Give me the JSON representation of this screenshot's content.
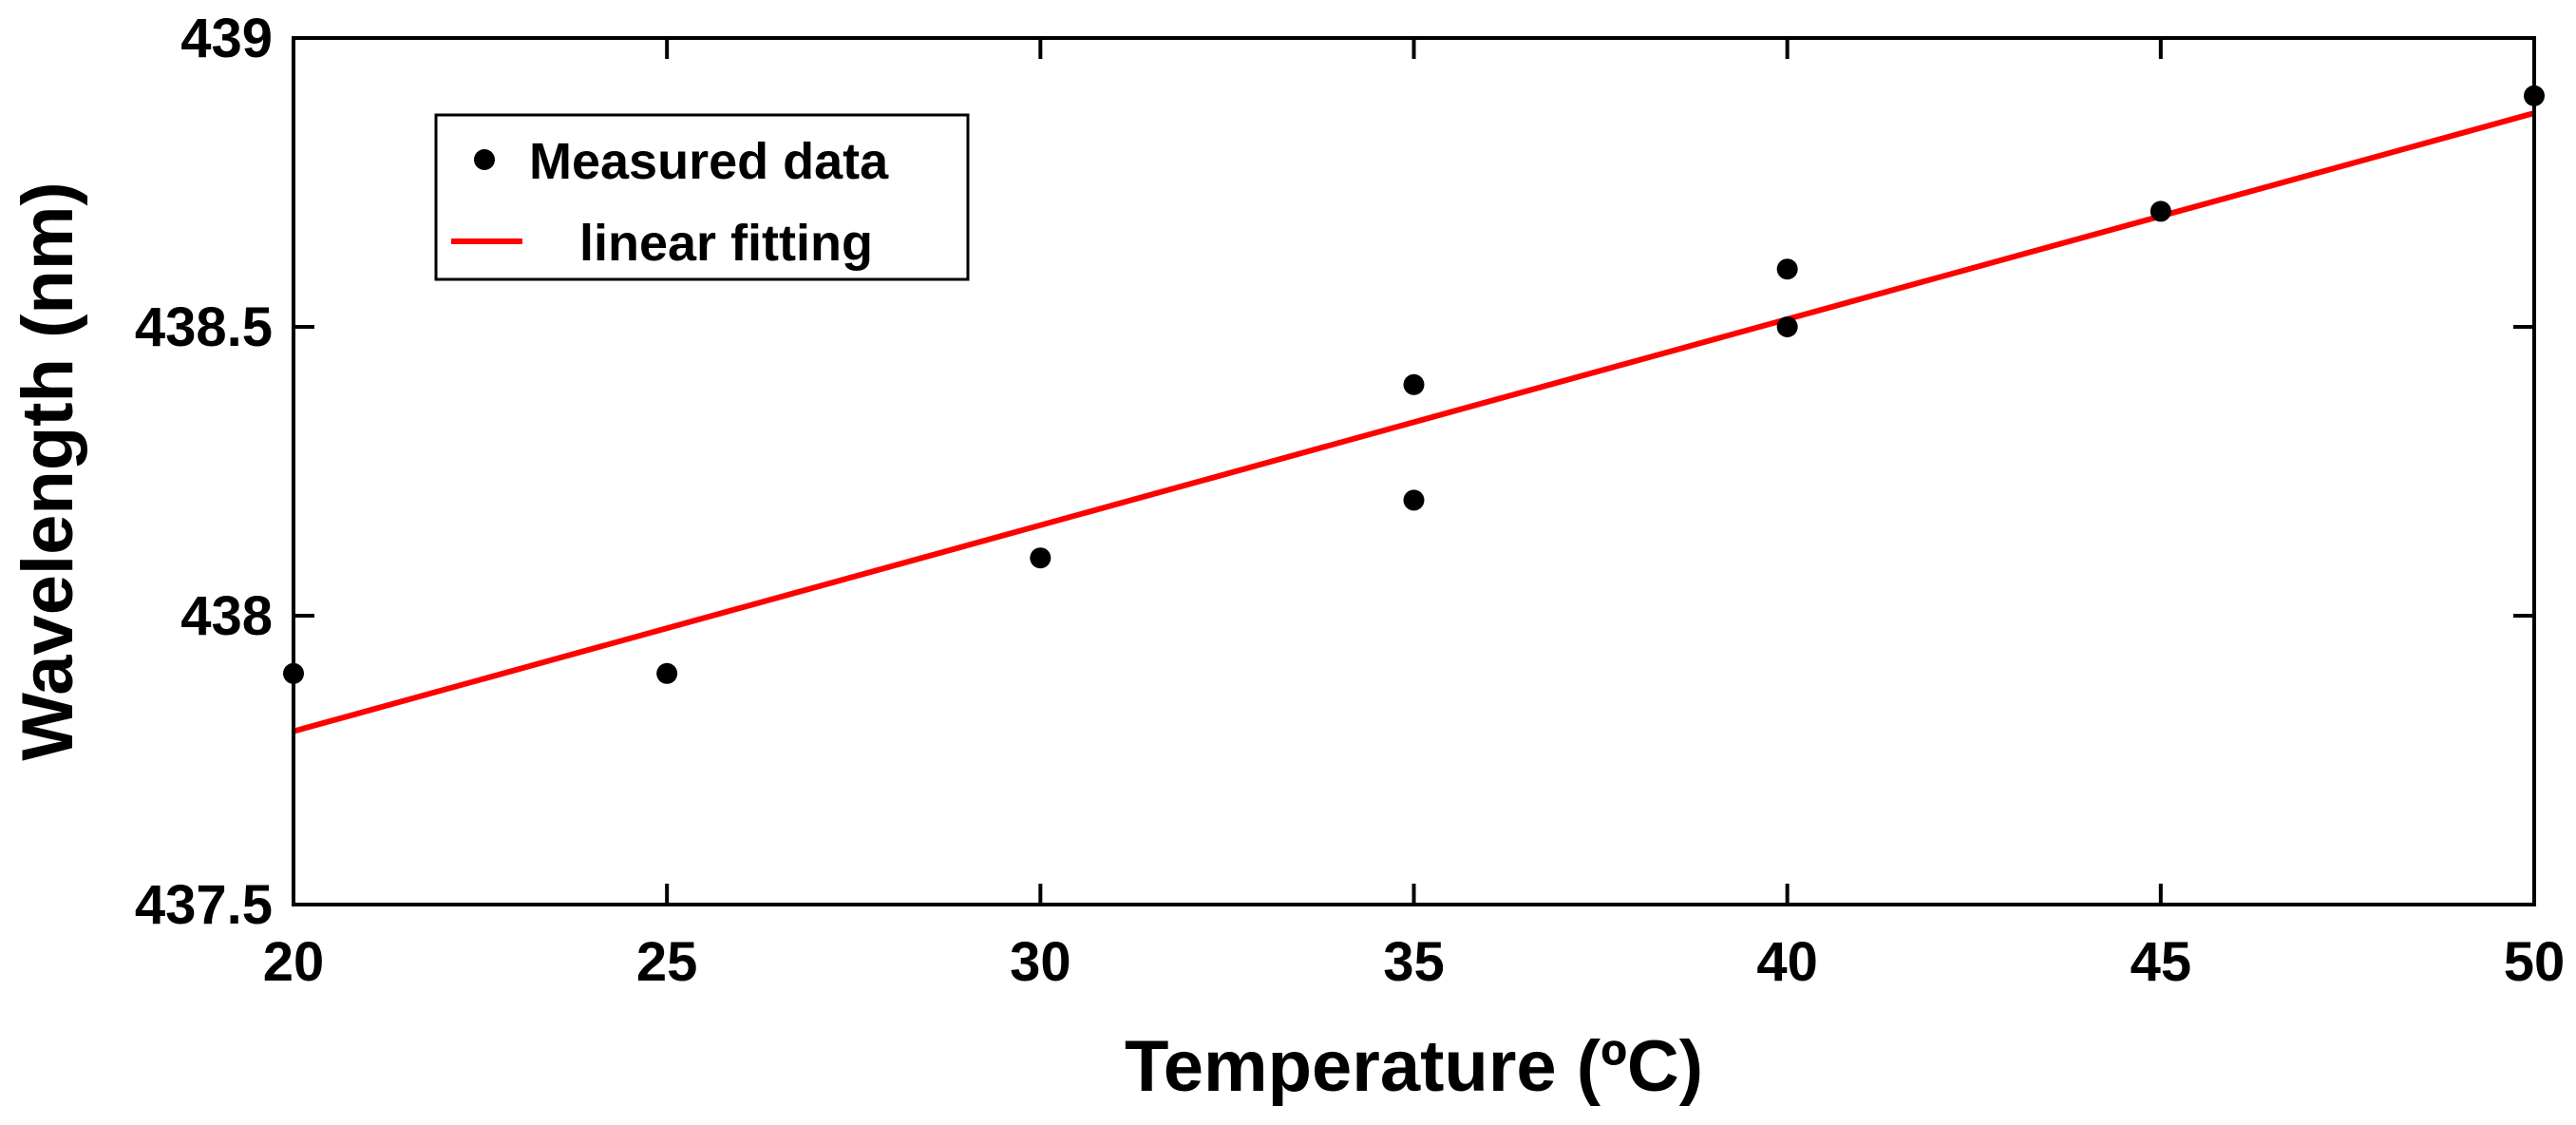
{
  "chart_data": {
    "type": "scatter",
    "title": "",
    "xlabel": "Temperature (ºC)",
    "ylabel": "Wavelength (nm)",
    "xlim": [
      20,
      50
    ],
    "ylim": [
      437.5,
      439
    ],
    "xticks": [
      20,
      25,
      30,
      35,
      40,
      45,
      50
    ],
    "yticks": [
      437.5,
      438,
      438.5,
      439
    ],
    "xtick_labels": [
      "20",
      "25",
      "30",
      "35",
      "40",
      "45",
      "50"
    ],
    "ytick_labels": [
      "437.5",
      "438",
      "438.5",
      "439"
    ],
    "grid": false,
    "legend_position": "top-left",
    "series": [
      {
        "name": "Measured data",
        "kind": "scatter",
        "color": "#000000",
        "x": [
          20,
          25,
          30,
          35,
          35,
          40,
          40,
          45,
          50
        ],
        "y": [
          437.9,
          437.9,
          438.1,
          438.2,
          438.4,
          438.5,
          438.6,
          438.7,
          438.9
        ]
      },
      {
        "name": "linear fitting",
        "kind": "line",
        "color": "#ff0000",
        "x": [
          20,
          50
        ],
        "y": [
          437.8,
          438.87
        ]
      }
    ]
  }
}
